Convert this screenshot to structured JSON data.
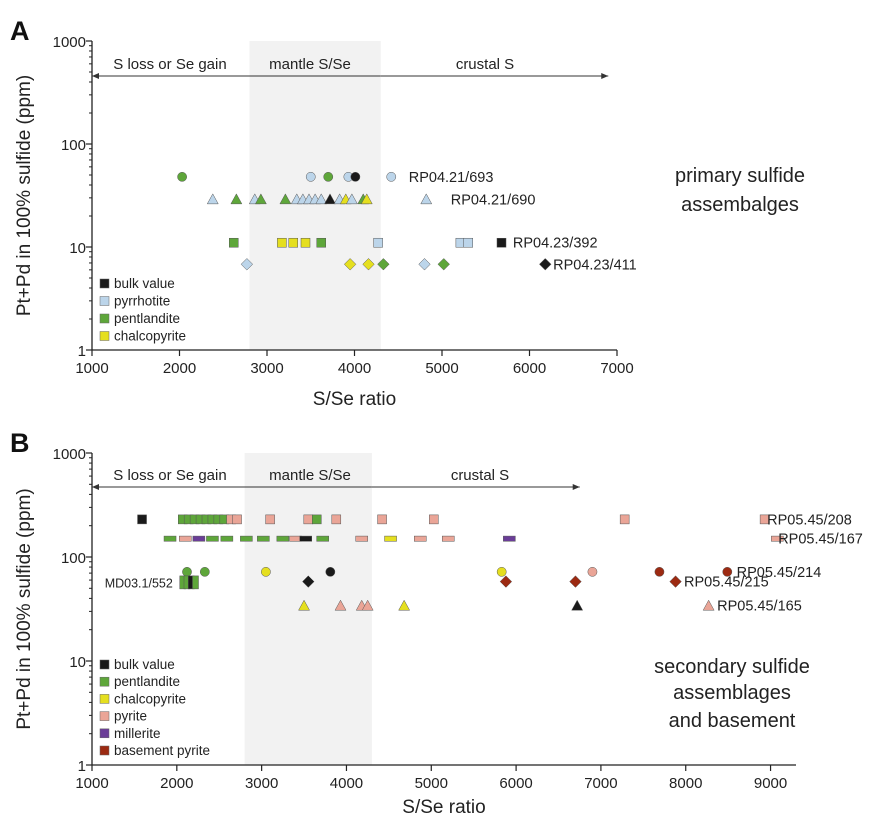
{
  "colors": {
    "bulk": "#1a1a1a",
    "pyrrhotite": "#bcd5ea",
    "pentlandite": "#5ea63a",
    "chalcopyrite": "#e5df1f",
    "pyrite": "#eaa597",
    "millerite": "#6a3d97",
    "basement": "#9c2a12",
    "band": "#f2f2f2",
    "axis": "#222222"
  },
  "chart_data": [
    {
      "type": "scatter",
      "panel_label": "A",
      "xlabel": "S/Se ratio",
      "ylabel": "Pt+Pd in 100% sulfide (ppm)",
      "xlim": [
        1000,
        7000
      ],
      "xticks": [
        1000,
        2000,
        3000,
        4000,
        5000,
        6000,
        7000
      ],
      "ylim": [
        1,
        1000
      ],
      "yscale": "log",
      "yticks": [
        1,
        10,
        100,
        1000
      ],
      "yticklabels": [
        "1",
        "10",
        "100",
        "1000"
      ],
      "band": [
        2800,
        4300
      ],
      "regions": [
        {
          "text": "S loss or Se gain",
          "arrow_from": 4300,
          "arrow_to": 1000
        },
        {
          "text": "mantle S/Se"
        },
        {
          "text": "crustal S",
          "arrow_from": 4300,
          "arrow_to": 6900
        }
      ],
      "annotation": {
        "line1": "primary sulfide",
        "line2": "assembalges"
      },
      "legend": {
        "position": "bottom-left",
        "entries": [
          {
            "label": "bulk value",
            "color": "bulk"
          },
          {
            "label": "pyrrhotite",
            "color": "pyrrhotite"
          },
          {
            "label": "pentlandite",
            "color": "pentlandite"
          },
          {
            "label": "chalcopyrite",
            "color": "chalcopyrite"
          }
        ]
      },
      "sample_labels": [
        {
          "text": "RP04.21/693",
          "x": 4620,
          "y": 48
        },
        {
          "text": "RP04.21/690",
          "x": 5100,
          "y": 29
        },
        {
          "text": "RP04.23/392",
          "x": 5810,
          "y": 11
        },
        {
          "text": "RP04.23/411",
          "x": 6270,
          "y": 6.8
        }
      ],
      "series": [
        {
          "name": "RP04.21/693",
          "marker": "circle",
          "points": [
            {
              "x": 2030,
              "y": 48,
              "c": "pentlandite"
            },
            {
              "x": 3500,
              "y": 48,
              "c": "pyrrhotite"
            },
            {
              "x": 3700,
              "y": 48,
              "c": "pentlandite"
            },
            {
              "x": 3930,
              "y": 48,
              "c": "pyrrhotite"
            },
            {
              "x": 4010,
              "y": 48,
              "c": "bulk"
            },
            {
              "x": 4420,
              "y": 48,
              "c": "pyrrhotite"
            }
          ]
        },
        {
          "name": "RP04.21/690",
          "marker": "triangle",
          "points": [
            {
              "x": 2380,
              "y": 29,
              "c": "pyrrhotite"
            },
            {
              "x": 2650,
              "y": 29,
              "c": "pentlandite"
            },
            {
              "x": 2860,
              "y": 29,
              "c": "pyrrhotite"
            },
            {
              "x": 2930,
              "y": 29,
              "c": "pentlandite"
            },
            {
              "x": 3210,
              "y": 29,
              "c": "pentlandite"
            },
            {
              "x": 3340,
              "y": 29,
              "c": "pyrrhotite"
            },
            {
              "x": 3410,
              "y": 29,
              "c": "pyrrhotite"
            },
            {
              "x": 3480,
              "y": 29,
              "c": "pyrrhotite"
            },
            {
              "x": 3550,
              "y": 29,
              "c": "pyrrhotite"
            },
            {
              "x": 3620,
              "y": 29,
              "c": "pyrrhotite"
            },
            {
              "x": 3720,
              "y": 29,
              "c": "bulk"
            },
            {
              "x": 3830,
              "y": 29,
              "c": "pyrrhotite"
            },
            {
              "x": 3900,
              "y": 29,
              "c": "chalcopyrite"
            },
            {
              "x": 3970,
              "y": 29,
              "c": "pyrrhotite"
            },
            {
              "x": 4100,
              "y": 29,
              "c": "pentlandite"
            },
            {
              "x": 4140,
              "y": 29,
              "c": "chalcopyrite"
            },
            {
              "x": 4820,
              "y": 29,
              "c": "pyrrhotite"
            }
          ]
        },
        {
          "name": "RP04.23/392",
          "marker": "square",
          "points": [
            {
              "x": 2620,
              "y": 11,
              "c": "pentlandite"
            },
            {
              "x": 3170,
              "y": 11,
              "c": "chalcopyrite"
            },
            {
              "x": 3300,
              "y": 11,
              "c": "chalcopyrite"
            },
            {
              "x": 3440,
              "y": 11,
              "c": "chalcopyrite"
            },
            {
              "x": 3620,
              "y": 11,
              "c": "pentlandite"
            },
            {
              "x": 4270,
              "y": 11,
              "c": "pyrrhotite"
            },
            {
              "x": 5210,
              "y": 11,
              "c": "pyrrhotite"
            },
            {
              "x": 5300,
              "y": 11,
              "c": "pyrrhotite"
            },
            {
              "x": 5680,
              "y": 11,
              "c": "bulk"
            }
          ]
        },
        {
          "name": "RP04.23/411",
          "marker": "diamond",
          "points": [
            {
              "x": 2770,
              "y": 6.8,
              "c": "pyrrhotite"
            },
            {
              "x": 3950,
              "y": 6.8,
              "c": "chalcopyrite"
            },
            {
              "x": 4160,
              "y": 6.8,
              "c": "chalcopyrite"
            },
            {
              "x": 4330,
              "y": 6.8,
              "c": "pentlandite"
            },
            {
              "x": 4800,
              "y": 6.8,
              "c": "pyrrhotite"
            },
            {
              "x": 5020,
              "y": 6.8,
              "c": "pentlandite"
            },
            {
              "x": 6180,
              "y": 6.8,
              "c": "bulk"
            }
          ]
        }
      ]
    },
    {
      "type": "scatter",
      "panel_label": "B",
      "xlabel": "S/Se ratio",
      "ylabel": "Pt+Pd in 100% sulfide (ppm)",
      "xlim": [
        1000,
        9300
      ],
      "xticks": [
        1000,
        2000,
        3000,
        4000,
        5000,
        6000,
        7000,
        8000,
        9000
      ],
      "ylim": [
        1,
        1000
      ],
      "yscale": "log",
      "yticks": [
        1,
        10,
        100,
        1000
      ],
      "yticklabels": [
        "1",
        "10",
        "100",
        "1000"
      ],
      "band": [
        2800,
        4300
      ],
      "regions": [
        {
          "text": "S loss or Se gain",
          "arrow_from": 4300,
          "arrow_to": 1000
        },
        {
          "text": "mantle S/Se"
        },
        {
          "text": "crustal S",
          "arrow_from": 4300,
          "arrow_to": 6750
        }
      ],
      "annotation": {
        "line1": "secondary sulfide",
        "line2": "assemblages",
        "line3": "and basement"
      },
      "legend": {
        "position": "bottom-left",
        "entries": [
          {
            "label": "bulk value",
            "color": "bulk"
          },
          {
            "label": "pentlandite",
            "color": "pentlandite"
          },
          {
            "label": "chalcopyrite",
            "color": "chalcopyrite"
          },
          {
            "label": "pyrite",
            "color": "pyrite"
          },
          {
            "label": "millerite",
            "color": "millerite"
          },
          {
            "label": "basement pyrite",
            "color": "basement"
          }
        ]
      },
      "sample_labels": [
        {
          "text": "RP05.45/208",
          "x": 8960,
          "y": 230
        },
        {
          "text": "RP05.45/167",
          "x": 9090,
          "y": 150
        },
        {
          "text": "RP05.45/214",
          "x": 8600,
          "y": 72
        },
        {
          "text": "RP05.45/215",
          "x": 7980,
          "y": 58
        },
        {
          "text": "RP05.45/165",
          "x": 8370,
          "y": 34
        },
        {
          "text": "MD03.1/552",
          "x": 2000,
          "y": 57,
          "anchor": "end"
        }
      ],
      "series": [
        {
          "name": "RP05.45/208",
          "marker": "square",
          "points": [
            {
              "x": 1590,
              "y": 230,
              "c": "bulk"
            },
            {
              "x": 2070,
              "y": 230,
              "c": "pentlandite"
            },
            {
              "x": 2140,
              "y": 230,
              "c": "pentlandite"
            },
            {
              "x": 2210,
              "y": 230,
              "c": "pentlandite"
            },
            {
              "x": 2280,
              "y": 230,
              "c": "pentlandite"
            },
            {
              "x": 2350,
              "y": 230,
              "c": "pentlandite"
            },
            {
              "x": 2420,
              "y": 230,
              "c": "pentlandite"
            },
            {
              "x": 2490,
              "y": 230,
              "c": "pentlandite"
            },
            {
              "x": 2560,
              "y": 230,
              "c": "pentlandite"
            },
            {
              "x": 2640,
              "y": 230,
              "c": "pyrite"
            },
            {
              "x": 2710,
              "y": 230,
              "c": "pyrite"
            },
            {
              "x": 3100,
              "y": 230,
              "c": "pyrite"
            },
            {
              "x": 3550,
              "y": 230,
              "c": "pyrite"
            },
            {
              "x": 3650,
              "y": 230,
              "c": "pentlandite"
            },
            {
              "x": 3880,
              "y": 230,
              "c": "pyrite"
            },
            {
              "x": 4420,
              "y": 230,
              "c": "pyrite"
            },
            {
              "x": 5030,
              "y": 230,
              "c": "pyrite"
            },
            {
              "x": 7280,
              "y": 230,
              "c": "pyrite"
            },
            {
              "x": 8930,
              "y": 230,
              "c": "pyrite"
            }
          ]
        },
        {
          "name": "RP05.45/167",
          "marker": "dash",
          "points": [
            {
              "x": 1920,
              "y": 150,
              "c": "pentlandite"
            },
            {
              "x": 2100,
              "y": 150,
              "c": "pyrite"
            },
            {
              "x": 2260,
              "y": 150,
              "c": "millerite"
            },
            {
              "x": 2420,
              "y": 150,
              "c": "pentlandite"
            },
            {
              "x": 2590,
              "y": 150,
              "c": "pentlandite"
            },
            {
              "x": 2820,
              "y": 150,
              "c": "pentlandite"
            },
            {
              "x": 3020,
              "y": 150,
              "c": "pentlandite"
            },
            {
              "x": 3250,
              "y": 150,
              "c": "pentlandite"
            },
            {
              "x": 3400,
              "y": 150,
              "c": "pyrite"
            },
            {
              "x": 3520,
              "y": 150,
              "c": "bulk"
            },
            {
              "x": 3720,
              "y": 150,
              "c": "pentlandite"
            },
            {
              "x": 4180,
              "y": 150,
              "c": "pyrite"
            },
            {
              "x": 4520,
              "y": 150,
              "c": "chalcopyrite"
            },
            {
              "x": 4870,
              "y": 150,
              "c": "pyrite"
            },
            {
              "x": 5200,
              "y": 150,
              "c": "pyrite"
            },
            {
              "x": 5920,
              "y": 150,
              "c": "millerite"
            },
            {
              "x": 9080,
              "y": 150,
              "c": "pyrite"
            }
          ]
        },
        {
          "name": "RP05.45/214",
          "marker": "circle",
          "points": [
            {
              "x": 2120,
              "y": 72,
              "c": "pentlandite"
            },
            {
              "x": 2330,
              "y": 72,
              "c": "pentlandite"
            },
            {
              "x": 3050,
              "y": 72,
              "c": "chalcopyrite"
            },
            {
              "x": 3810,
              "y": 72,
              "c": "bulk"
            },
            {
              "x": 5830,
              "y": 72,
              "c": "chalcopyrite"
            },
            {
              "x": 6900,
              "y": 72,
              "c": "pyrite"
            },
            {
              "x": 7690,
              "y": 72,
              "c": "basement"
            },
            {
              "x": 8490,
              "y": 72,
              "c": "basement"
            }
          ]
        },
        {
          "name": "RP05.45/215",
          "marker": "diamond",
          "points": [
            {
              "x": 3550,
              "y": 58,
              "c": "bulk"
            },
            {
              "x": 5880,
              "y": 58,
              "c": "basement"
            },
            {
              "x": 6700,
              "y": 58,
              "c": "basement"
            },
            {
              "x": 7880,
              "y": 58,
              "c": "basement"
            }
          ]
        },
        {
          "name": "RP05.45/165",
          "marker": "triangle",
          "points": [
            {
              "x": 3500,
              "y": 34,
              "c": "chalcopyrite"
            },
            {
              "x": 3930,
              "y": 34,
              "c": "pyrite"
            },
            {
              "x": 4180,
              "y": 34,
              "c": "pyrite"
            },
            {
              "x": 4250,
              "y": 34,
              "c": "pyrite"
            },
            {
              "x": 4680,
              "y": 34,
              "c": "chalcopyrite"
            },
            {
              "x": 6720,
              "y": 34,
              "c": "bulk"
            },
            {
              "x": 8270,
              "y": 34,
              "c": "pyrite"
            }
          ]
        },
        {
          "name": "MD03.1/552",
          "marker": "bar",
          "points": [
            {
              "x": 2070,
              "y": 57,
              "c": "pentlandite"
            },
            {
              "x": 2120,
              "y": 57,
              "c": "pentlandite"
            },
            {
              "x": 2170,
              "y": 57,
              "c": "bulk"
            },
            {
              "x": 2220,
              "y": 57,
              "c": "pentlandite"
            }
          ]
        }
      ]
    }
  ]
}
